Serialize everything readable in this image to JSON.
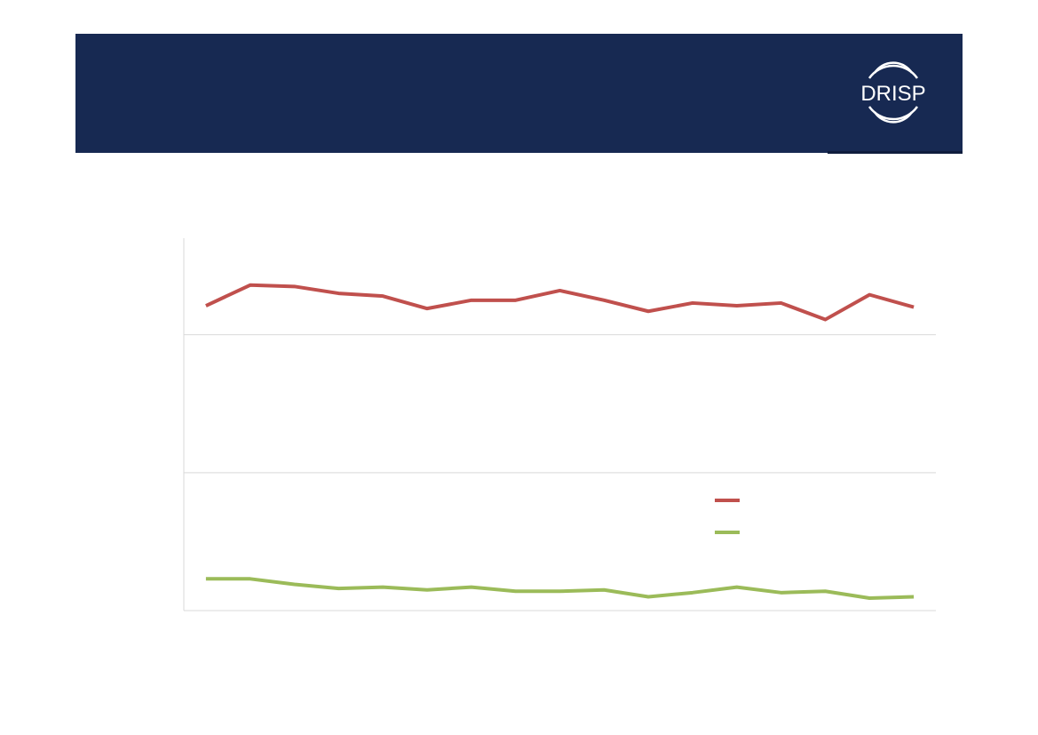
{
  "logo": {
    "text": "DRISP"
  },
  "chart_data": {
    "type": "line",
    "categories": [
      null,
      null,
      null,
      null,
      null,
      null,
      null,
      null,
      null,
      null,
      null,
      null,
      null,
      null,
      null,
      null,
      null
    ],
    "series": [
      {
        "color": "#c0504d",
        "values": [
          2.21,
          2.36,
          2.35,
          2.3,
          2.28,
          2.19,
          2.25,
          2.25,
          2.32,
          2.25,
          2.17,
          2.23,
          2.21,
          2.23,
          2.11,
          2.29,
          2.2
        ]
      },
      {
        "color": "#9bbb59",
        "values": [
          0.23,
          0.23,
          0.19,
          0.16,
          0.17,
          0.15,
          0.17,
          0.14,
          0.14,
          0.15,
          0.1,
          0.13,
          0.17,
          0.13,
          0.14,
          0.09,
          0.1
        ]
      }
    ],
    "ylim": [
      0,
      2.7
    ],
    "yticks": [
      0,
      1,
      2
    ],
    "grid": true
  }
}
